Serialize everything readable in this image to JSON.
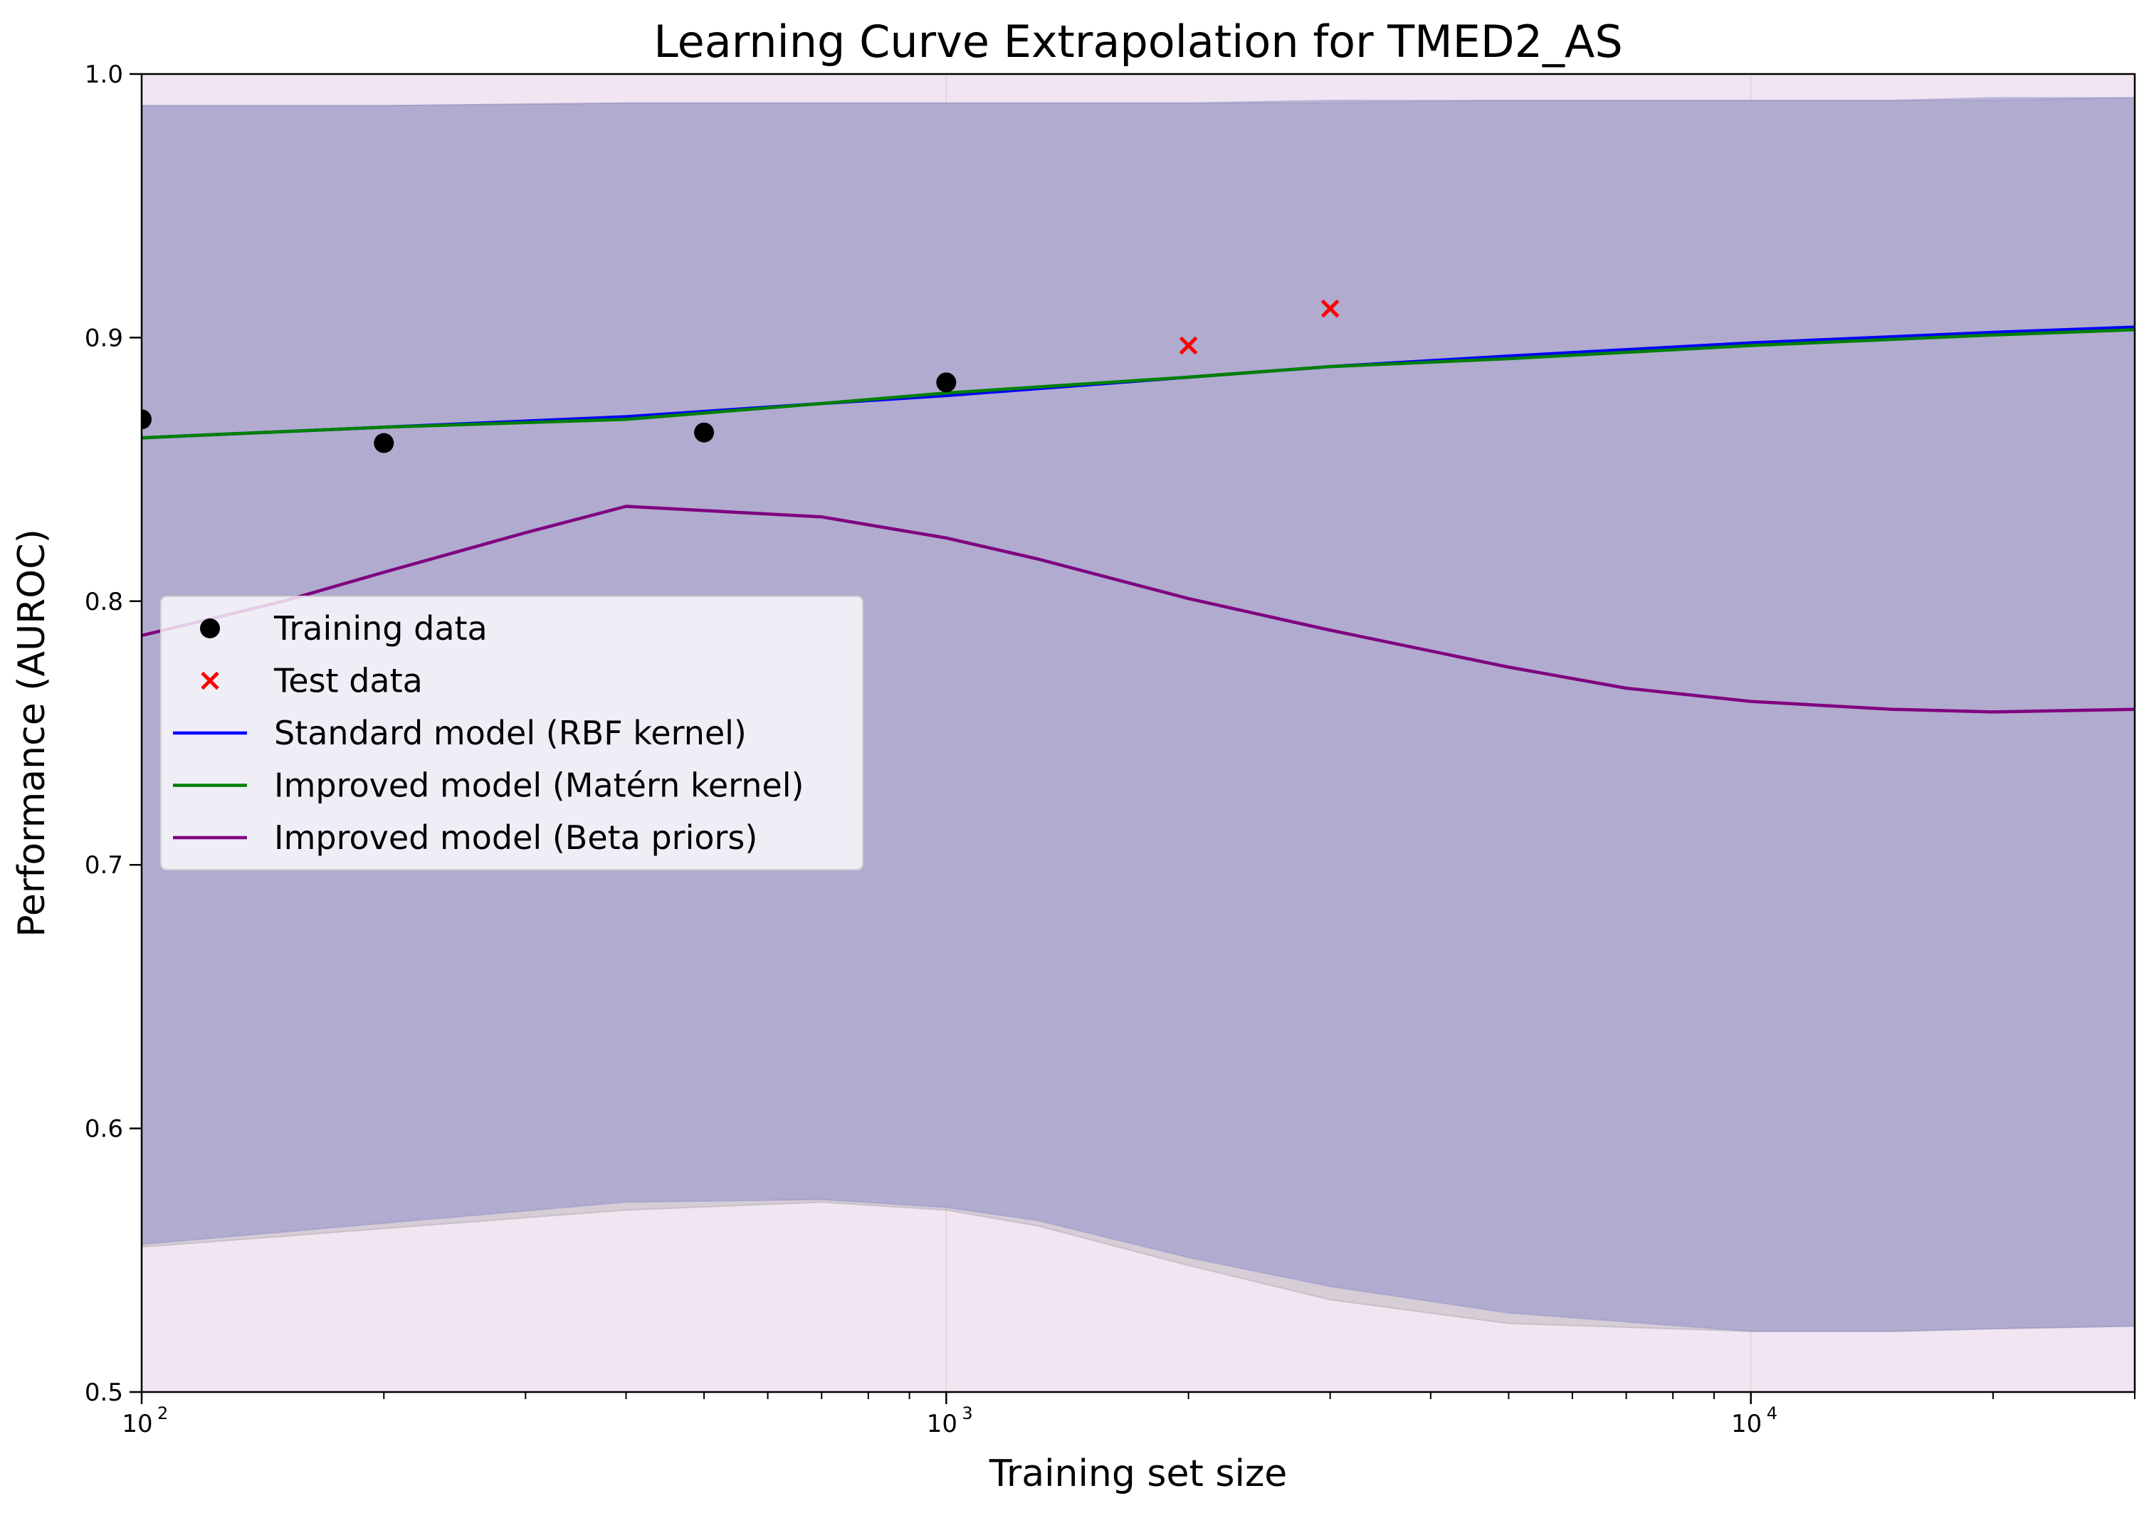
{
  "chart_data": {
    "type": "line",
    "title": "Learning Curve Extrapolation for TMED2_AS",
    "xlabel": "Training set size",
    "ylabel": "Performance (AUROC)",
    "xscale": "log",
    "xlim": [
      100,
      30000
    ],
    "ylim": [
      0.5,
      1.0
    ],
    "grid": true,
    "legend_position": "center-left",
    "x_ticks": [
      {
        "value": 100,
        "base": "10",
        "exp": "2"
      },
      {
        "value": 1000,
        "base": "10",
        "exp": "3"
      },
      {
        "value": 10000,
        "base": "10",
        "exp": "4"
      }
    ],
    "y_ticks": [
      {
        "value": 0.5,
        "label": "0.5"
      },
      {
        "value": 0.6,
        "label": "0.6"
      },
      {
        "value": 0.7,
        "label": "0.7"
      },
      {
        "value": 0.8,
        "label": "0.8"
      },
      {
        "value": 0.9,
        "label": "0.9"
      },
      {
        "value": 1.0,
        "label": "1.0"
      }
    ],
    "bands": [
      {
        "name": "Improved model (Beta priors) interval",
        "color": "#800080",
        "opacity": 0.1,
        "x": [
          100,
          30000
        ],
        "upper": [
          1.0,
          1.0
        ],
        "lower": [
          0.5,
          0.5
        ]
      },
      {
        "name": "Improved model (Matérn kernel) interval",
        "color": "#9a9a9a",
        "opacity": 0.32,
        "x": [
          100,
          200,
          400,
          700,
          1000,
          1300,
          2000,
          3000,
          5000,
          10000,
          15000,
          20000,
          30000
        ],
        "upper": [
          0.988,
          0.988,
          0.989,
          0.989,
          0.989,
          0.989,
          0.989,
          0.989,
          0.99,
          0.99,
          0.99,
          0.99,
          0.991
        ],
        "lower": [
          0.555,
          0.562,
          0.569,
          0.572,
          0.569,
          0.563,
          0.548,
          0.535,
          0.526,
          0.523,
          0.523,
          0.524,
          0.525
        ]
      },
      {
        "name": "Standard model (RBF kernel) interval",
        "color": "#8a8ac8",
        "opacity": 0.5,
        "x": [
          100,
          200,
          400,
          700,
          1000,
          1300,
          2000,
          3000,
          5000,
          10000,
          15000,
          20000,
          30000
        ],
        "upper": [
          0.988,
          0.988,
          0.989,
          0.989,
          0.989,
          0.989,
          0.989,
          0.99,
          0.99,
          0.99,
          0.99,
          0.991,
          0.991
        ],
        "lower": [
          0.556,
          0.564,
          0.572,
          0.573,
          0.57,
          0.565,
          0.551,
          0.54,
          0.53,
          0.523,
          0.523,
          0.524,
          0.525
        ]
      }
    ],
    "series": [
      {
        "name": "Standard model (RBF kernel)",
        "kind": "line",
        "color": "#0000ff",
        "x": [
          100,
          200,
          400,
          700,
          1000,
          2000,
          3000,
          5000,
          10000,
          20000,
          30000
        ],
        "y": [
          0.862,
          0.866,
          0.87,
          0.875,
          0.878,
          0.885,
          0.889,
          0.893,
          0.898,
          0.902,
          0.904
        ]
      },
      {
        "name": "Improved model (Matérn kernel)",
        "kind": "line",
        "color": "#008000",
        "x": [
          100,
          200,
          400,
          700,
          1000,
          2000,
          3000,
          5000,
          10000,
          20000,
          30000
        ],
        "y": [
          0.862,
          0.866,
          0.869,
          0.875,
          0.879,
          0.885,
          0.889,
          0.892,
          0.897,
          0.901,
          0.903
        ]
      },
      {
        "name": "Improved model (Beta priors)",
        "kind": "line",
        "color": "#800080",
        "x": [
          100,
          150,
          200,
          300,
          400,
          700,
          1000,
          1300,
          2000,
          3000,
          5000,
          7000,
          10000,
          15000,
          20000,
          30000
        ],
        "y": [
          0.787,
          0.8,
          0.811,
          0.826,
          0.836,
          0.832,
          0.824,
          0.816,
          0.801,
          0.789,
          0.775,
          0.767,
          0.762,
          0.759,
          0.758,
          0.759
        ]
      },
      {
        "name": "Training data",
        "kind": "scatter",
        "marker": "circle",
        "color": "#000000",
        "x": [
          100,
          200,
          500,
          1000
        ],
        "y": [
          0.869,
          0.86,
          0.864,
          0.883
        ]
      },
      {
        "name": "Test data",
        "kind": "scatter",
        "marker": "x",
        "color": "#ff0000",
        "x": [
          2000,
          3000
        ],
        "y": [
          0.897,
          0.911
        ]
      }
    ],
    "legend": [
      {
        "label": "Training data",
        "marker": "circle",
        "color": "#000000"
      },
      {
        "label": "Test data",
        "marker": "x",
        "color": "#ff0000"
      },
      {
        "label": "Standard model (RBF kernel)",
        "marker": "line",
        "color": "#0000ff"
      },
      {
        "label": "Improved model (Matérn kernel)",
        "marker": "line",
        "color": "#008000"
      },
      {
        "label": "Improved model (Beta priors)",
        "marker": "line",
        "color": "#800080"
      }
    ]
  }
}
